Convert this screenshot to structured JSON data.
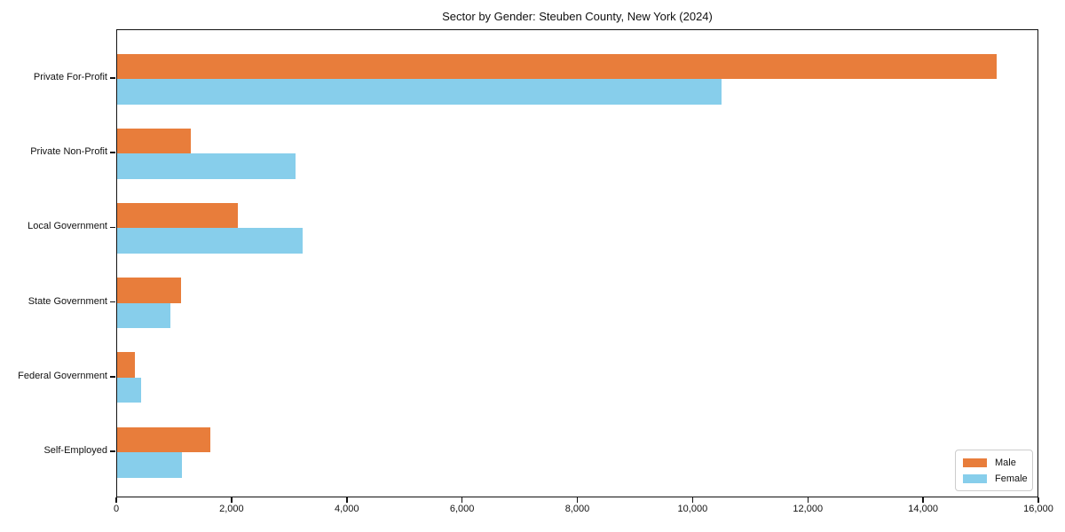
{
  "chart_data": {
    "type": "bar",
    "orientation": "horizontal",
    "title": "Sector by Gender: Steuben County, New York (2024)",
    "categories": [
      "Private For-Profit",
      "Private Non-Profit",
      "Local Government",
      "State Government",
      "Federal Government",
      "Self-Employed"
    ],
    "series": [
      {
        "name": "Male",
        "color": "#e87d3b",
        "values": [
          15260,
          1280,
          2100,
          1110,
          310,
          1620
        ]
      },
      {
        "name": "Female",
        "color": "#87ceeb",
        "values": [
          10490,
          3100,
          3220,
          920,
          420,
          1120
        ]
      }
    ],
    "xlim": [
      0,
      16000
    ],
    "xticks": [
      0,
      2000,
      4000,
      6000,
      8000,
      10000,
      12000,
      14000,
      16000
    ],
    "xtick_labels": [
      "0",
      "2,000",
      "4,000",
      "6,000",
      "8,000",
      "10,000",
      "12,000",
      "14,000",
      "16,000"
    ],
    "xlabel": "",
    "ylabel": "",
    "grid": false,
    "legend": {
      "position": "lower right",
      "entries": [
        "Male",
        "Female"
      ]
    }
  }
}
